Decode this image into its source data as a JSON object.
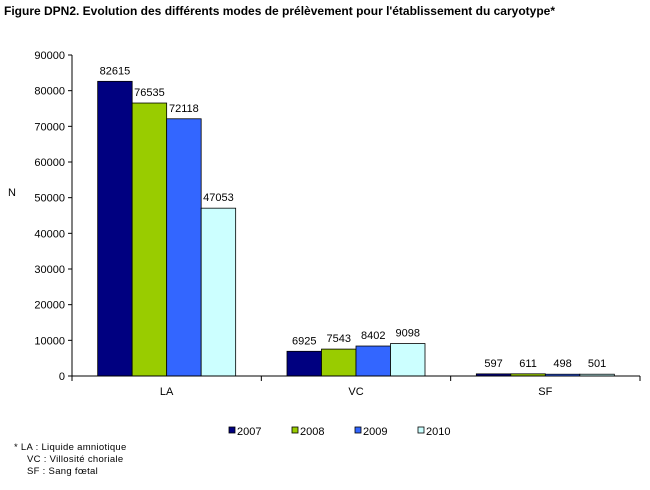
{
  "chart_data": {
    "type": "bar",
    "title": "Figure DPN2. Evolution des différents modes de prélèvement pour l'établissement du caryotype*",
    "ylabel": "N",
    "xlabel": "",
    "categories": [
      "LA",
      "VC",
      "SF"
    ],
    "ylim": [
      0,
      90000
    ],
    "yticks": [
      0,
      10000,
      20000,
      30000,
      40000,
      50000,
      60000,
      70000,
      80000,
      90000
    ],
    "grid": false,
    "legend_position": "bottom",
    "series": [
      {
        "name": "2007",
        "color": "#000080",
        "values": [
          82615,
          6925,
          597
        ]
      },
      {
        "name": "2008",
        "color": "#99CC00",
        "values": [
          76535,
          7543,
          611
        ]
      },
      {
        "name": "2009",
        "color": "#3366FF",
        "values": [
          72118,
          8402,
          498
        ]
      },
      {
        "name": "2010",
        "color": "#CCFFFF",
        "values": [
          47053,
          9098,
          501
        ]
      }
    ]
  },
  "footnotes": [
    "* LA : Liquide amniotique",
    "VC : Villosité choriale",
    "SF : Sang fœtal"
  ]
}
